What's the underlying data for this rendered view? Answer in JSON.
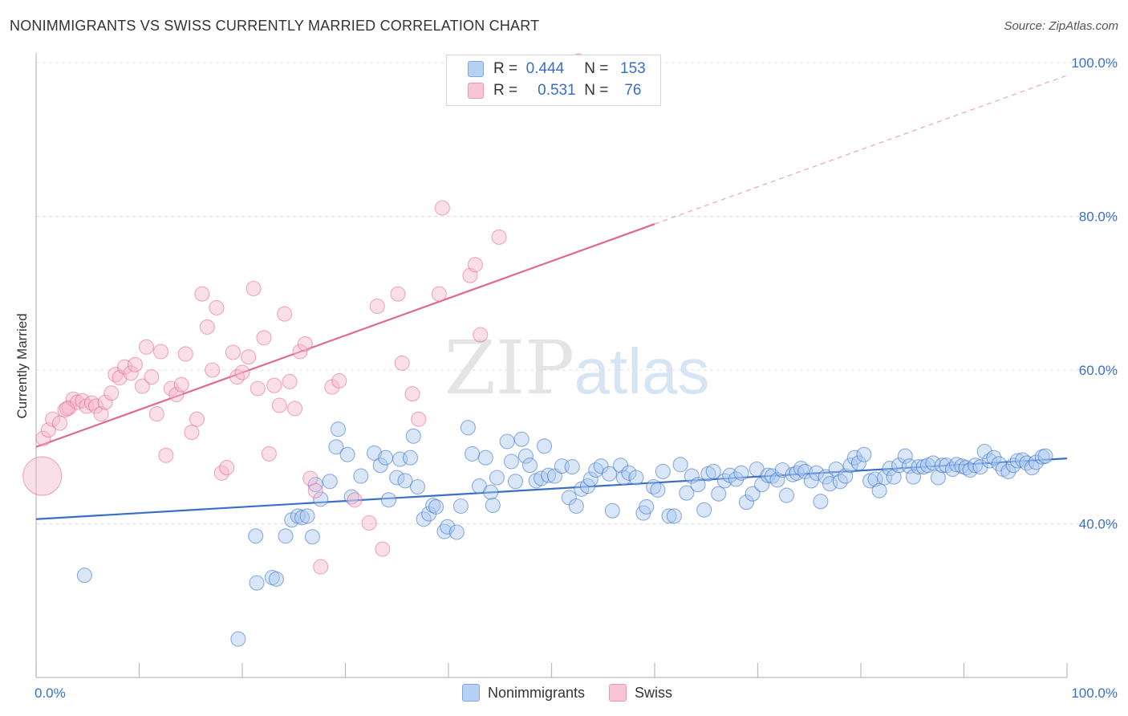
{
  "header": {
    "title": "NONIMMIGRANTS VS SWISS CURRENTLY MARRIED CORRELATION CHART",
    "source": "Source: ZipAtlas.com"
  },
  "watermark": {
    "zip": "ZIP",
    "atlas": "atlas"
  },
  "legend": {
    "r_label": "R =",
    "n_label": "N =",
    "rows": [
      {
        "name": "Nonimmigrants",
        "r": "0.444",
        "n": "153",
        "color": "#9dbfee"
      },
      {
        "name": "Swiss",
        "r": "0.531",
        "n": "76",
        "color": "#f4aec4"
      }
    ]
  },
  "chart_data": {
    "type": "scatter",
    "title": "NONIMMIGRANTS VS SWISS CURRENTLY MARRIED CORRELATION CHART",
    "xlabel": "",
    "ylabel": "Currently Married",
    "xlim": [
      0,
      100
    ],
    "ylim": [
      20,
      100
    ],
    "x_tick_labels": [
      "0.0%",
      "100.0%"
    ],
    "y_tick_labels": [
      "40.0%",
      "60.0%",
      "80.0%",
      "100.0%"
    ],
    "y_tick_values": [
      40,
      60,
      80,
      100
    ],
    "grid": true,
    "series": [
      {
        "name": "Nonimmigrants",
        "color": "#3a6fc4",
        "fill": "#a9c8f0",
        "trend": {
          "x0": 0,
          "y0": 40.6,
          "x1": 100,
          "y1": 48.5,
          "dashed_from": null
        },
        "points": [
          [
            4.7,
            33.3
          ],
          [
            19.6,
            25.0
          ],
          [
            21.3,
            38.4
          ],
          [
            21.4,
            32.3
          ],
          [
            22.9,
            33.0
          ],
          [
            23.3,
            32.8
          ],
          [
            24.2,
            38.4
          ],
          [
            24.8,
            40.5
          ],
          [
            25.4,
            41.0
          ],
          [
            25.8,
            40.8
          ],
          [
            26.3,
            41.0
          ],
          [
            26.8,
            38.3
          ],
          [
            27.1,
            45.1
          ],
          [
            27.6,
            43.2
          ],
          [
            28.5,
            45.5
          ],
          [
            29.1,
            50.0
          ],
          [
            29.3,
            52.3
          ],
          [
            30.2,
            49.0
          ],
          [
            30.6,
            43.5
          ],
          [
            31.5,
            46.2
          ],
          [
            32.8,
            49.2
          ],
          [
            33.4,
            47.6
          ],
          [
            33.9,
            48.6
          ],
          [
            34.2,
            43.1
          ],
          [
            35.0,
            46.0
          ],
          [
            35.3,
            48.4
          ],
          [
            35.8,
            45.6
          ],
          [
            36.3,
            48.6
          ],
          [
            36.6,
            51.4
          ],
          [
            37.0,
            44.8
          ],
          [
            37.6,
            40.6
          ],
          [
            38.1,
            41.3
          ],
          [
            38.5,
            42.4
          ],
          [
            38.8,
            42.2
          ],
          [
            39.6,
            39.0
          ],
          [
            39.9,
            39.6
          ],
          [
            40.8,
            38.9
          ],
          [
            41.2,
            42.3
          ],
          [
            41.9,
            52.5
          ],
          [
            42.3,
            49.1
          ],
          [
            43.0,
            44.9
          ],
          [
            43.6,
            48.6
          ],
          [
            44.1,
            44.1
          ],
          [
            44.3,
            42.4
          ],
          [
            44.7,
            46.0
          ],
          [
            45.7,
            50.7
          ],
          [
            46.1,
            48.1
          ],
          [
            46.5,
            45.5
          ],
          [
            47.1,
            51.0
          ],
          [
            47.5,
            48.8
          ],
          [
            47.9,
            47.6
          ],
          [
            48.5,
            45.6
          ],
          [
            49.0,
            45.9
          ],
          [
            49.3,
            50.1
          ],
          [
            49.7,
            46.3
          ],
          [
            50.3,
            46.2
          ],
          [
            51.0,
            47.5
          ],
          [
            51.7,
            43.4
          ],
          [
            52.0,
            47.4
          ],
          [
            52.4,
            42.3
          ],
          [
            52.9,
            44.5
          ],
          [
            53.5,
            44.9
          ],
          [
            53.8,
            45.8
          ],
          [
            54.3,
            47.0
          ],
          [
            54.8,
            47.5
          ],
          [
            55.6,
            46.5
          ],
          [
            55.9,
            41.7
          ],
          [
            56.7,
            47.6
          ],
          [
            57.0,
            46.0
          ],
          [
            57.5,
            46.6
          ],
          [
            58.2,
            46.0
          ],
          [
            58.9,
            41.4
          ],
          [
            59.2,
            42.2
          ],
          [
            59.9,
            44.8
          ],
          [
            60.3,
            44.4
          ],
          [
            60.8,
            46.8
          ],
          [
            61.4,
            41.0
          ],
          [
            61.9,
            41.0
          ],
          [
            62.5,
            47.7
          ],
          [
            63.1,
            44.0
          ],
          [
            63.6,
            46.2
          ],
          [
            64.2,
            45.1
          ],
          [
            64.8,
            41.8
          ],
          [
            65.2,
            46.5
          ],
          [
            65.7,
            46.8
          ],
          [
            66.2,
            43.9
          ],
          [
            66.8,
            45.6
          ],
          [
            67.3,
            46.3
          ],
          [
            67.9,
            45.8
          ],
          [
            68.4,
            46.6
          ],
          [
            68.9,
            42.8
          ],
          [
            69.5,
            43.9
          ],
          [
            69.9,
            47.1
          ],
          [
            70.4,
            45.1
          ],
          [
            71.0,
            46.3
          ],
          [
            71.4,
            46.2
          ],
          [
            71.9,
            45.7
          ],
          [
            72.4,
            47.0
          ],
          [
            72.8,
            43.7
          ],
          [
            73.4,
            46.4
          ],
          [
            73.8,
            46.6
          ],
          [
            74.2,
            47.2
          ],
          [
            74.6,
            46.8
          ],
          [
            75.2,
            45.6
          ],
          [
            75.7,
            46.6
          ],
          [
            76.1,
            42.9
          ],
          [
            76.6,
            46.1
          ],
          [
            77.0,
            45.2
          ],
          [
            77.6,
            47.1
          ],
          [
            78.0,
            45.5
          ],
          [
            78.5,
            46.2
          ],
          [
            79.0,
            47.6
          ],
          [
            79.4,
            48.6
          ],
          [
            79.8,
            47.9
          ],
          [
            80.3,
            49.0
          ],
          [
            80.9,
            45.6
          ],
          [
            81.4,
            45.8
          ],
          [
            81.8,
            44.3
          ],
          [
            82.3,
            46.0
          ],
          [
            82.8,
            47.2
          ],
          [
            83.2,
            46.1
          ],
          [
            83.7,
            47.6
          ],
          [
            84.3,
            48.8
          ],
          [
            84.7,
            47.5
          ],
          [
            85.1,
            46.1
          ],
          [
            85.6,
            47.4
          ],
          [
            86.1,
            47.4
          ],
          [
            86.5,
            47.6
          ],
          [
            87.0,
            47.9
          ],
          [
            87.5,
            46.0
          ],
          [
            87.9,
            47.6
          ],
          [
            88.3,
            47.6
          ],
          [
            88.9,
            47.1
          ],
          [
            89.3,
            47.7
          ],
          [
            89.8,
            47.5
          ],
          [
            90.2,
            47.3
          ],
          [
            90.6,
            47.0
          ],
          [
            91.1,
            47.6
          ],
          [
            91.6,
            47.4
          ],
          [
            92.0,
            49.4
          ],
          [
            92.5,
            48.2
          ],
          [
            92.9,
            48.6
          ],
          [
            93.4,
            47.8
          ],
          [
            93.8,
            47.1
          ],
          [
            94.3,
            46.8
          ],
          [
            94.8,
            47.6
          ],
          [
            95.2,
            48.2
          ],
          [
            95.7,
            48.3
          ],
          [
            96.1,
            47.9
          ],
          [
            96.6,
            47.3
          ],
          [
            97.0,
            48.0
          ],
          [
            97.6,
            48.7
          ],
          [
            97.9,
            48.8
          ]
        ]
      },
      {
        "name": "Swiss",
        "color": "#e0678f",
        "fill": "#f6b8cb",
        "trend": {
          "x0": 0,
          "y0": 50.0,
          "x1": 60,
          "y1": 79.0,
          "dashed_from": 60
        },
        "points": [
          [
            0.7,
            51.1
          ],
          [
            1.2,
            52.2
          ],
          [
            1.6,
            53.6
          ],
          [
            2.3,
            53.1
          ],
          [
            2.8,
            54.8
          ],
          [
            3.2,
            55.1
          ],
          [
            3.6,
            56.2
          ],
          [
            4.0,
            55.8
          ],
          [
            4.5,
            56.0
          ],
          [
            4.9,
            55.3
          ],
          [
            5.4,
            55.7
          ],
          [
            5.8,
            55.3
          ],
          [
            6.3,
            54.3
          ],
          [
            6.7,
            55.8
          ],
          [
            7.3,
            57.0
          ],
          [
            7.7,
            59.4
          ],
          [
            8.1,
            59.0
          ],
          [
            8.6,
            60.4
          ],
          [
            9.2,
            59.6
          ],
          [
            9.6,
            60.7
          ],
          [
            10.3,
            57.9
          ],
          [
            10.7,
            63.0
          ],
          [
            11.2,
            59.1
          ],
          [
            11.7,
            54.3
          ],
          [
            12.1,
            62.4
          ],
          [
            12.6,
            48.9
          ],
          [
            13.1,
            57.6
          ],
          [
            13.6,
            56.8
          ],
          [
            14.1,
            58.1
          ],
          [
            14.5,
            62.1
          ],
          [
            15.1,
            51.9
          ],
          [
            15.6,
            53.6
          ],
          [
            16.1,
            69.9
          ],
          [
            16.6,
            65.6
          ],
          [
            17.1,
            60.0
          ],
          [
            17.5,
            68.1
          ],
          [
            18.0,
            46.6
          ],
          [
            18.5,
            47.3
          ],
          [
            19.1,
            62.3
          ],
          [
            19.5,
            59.1
          ],
          [
            20.0,
            59.7
          ],
          [
            20.6,
            61.7
          ],
          [
            21.1,
            70.6
          ],
          [
            21.5,
            57.6
          ],
          [
            22.1,
            64.2
          ],
          [
            22.6,
            49.1
          ],
          [
            23.1,
            58.0
          ],
          [
            23.6,
            55.4
          ],
          [
            24.1,
            67.3
          ],
          [
            24.6,
            58.5
          ],
          [
            25.1,
            55.0
          ],
          [
            25.6,
            62.4
          ],
          [
            26.1,
            63.4
          ],
          [
            26.6,
            45.9
          ],
          [
            27.1,
            44.3
          ],
          [
            27.6,
            34.4
          ],
          [
            28.7,
            57.8
          ],
          [
            29.4,
            58.6
          ],
          [
            30.9,
            43.1
          ],
          [
            32.3,
            40.1
          ],
          [
            33.1,
            68.3
          ],
          [
            33.6,
            36.7
          ],
          [
            35.1,
            69.9
          ],
          [
            35.5,
            60.9
          ],
          [
            36.5,
            56.9
          ],
          [
            37.1,
            53.6
          ],
          [
            39.1,
            69.9
          ],
          [
            39.4,
            81.1
          ],
          [
            42.1,
            72.3
          ],
          [
            42.6,
            73.7
          ],
          [
            43.1,
            64.6
          ],
          [
            44.9,
            77.3
          ],
          [
            51.9,
            100.0
          ],
          [
            52.6,
            100.2
          ],
          [
            0.6,
            46.2
          ],
          [
            3.0,
            55.0
          ]
        ]
      }
    ]
  }
}
